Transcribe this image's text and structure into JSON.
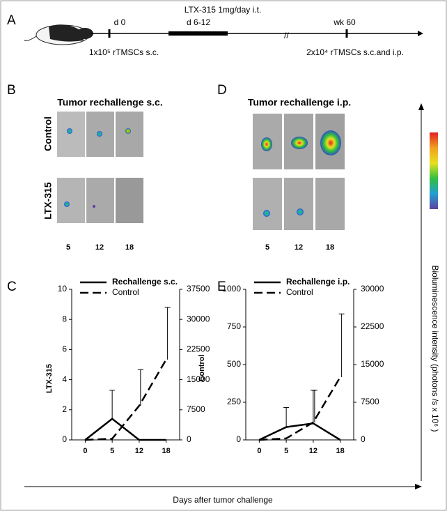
{
  "panel_labels": [
    "A",
    "B",
    "C",
    "D",
    "E"
  ],
  "timeline": {
    "treatment": "LTX-315 1mg/day i.t.",
    "day0": "d 0",
    "treatment_days": "d 6-12",
    "week": "wk 60",
    "inoculation": "1x10⁵ rTMSCs s.c.",
    "rechallenge": "2x10⁴ rTMSCs s.c.and i.p."
  },
  "imaging": [
    {
      "title": "Tumor rechallenge s.c.",
      "rows": [
        "Control",
        "LTX-315"
      ],
      "columns": [
        "5",
        "12",
        "18"
      ]
    },
    {
      "title": "Tumor rechallenge i.p.",
      "columns": [
        "5",
        "12",
        "18"
      ]
    }
  ],
  "colorbar_label": "Bioluminescence intensity (photons /s x 10⁶ )",
  "x_axis_label": "Days after tumor challenge",
  "chart_data": [
    {
      "type": "line",
      "categories": [
        "0",
        "5",
        "12",
        "18"
      ],
      "ylabel": "LTX-315",
      "y2label": "Control",
      "ylim": [
        0,
        10
      ],
      "yticks": [
        0,
        2,
        4,
        6,
        8,
        10
      ],
      "y2lim": [
        0,
        37500
      ],
      "y2ticks": [
        0,
        7500,
        15000,
        22500,
        30000,
        37500
      ],
      "series": [
        {
          "name": "Rechallenge s.c.",
          "color": "#000000",
          "line_style": "solid",
          "values": [
            0,
            1.4,
            0,
            0
          ],
          "errors": [
            null,
            1.9,
            null,
            null
          ]
        },
        {
          "name": "Control",
          "color": "#000000",
          "line_style": "dashed",
          "axis": "y2",
          "values": [
            0,
            300,
            8500,
            20000
          ],
          "errors": [
            null,
            null,
            9000,
            13000
          ]
        }
      ]
    },
    {
      "type": "line",
      "categories": [
        "0",
        "5",
        "12",
        "18"
      ],
      "ylim": [
        0,
        1000
      ],
      "yticks": [
        0,
        250,
        500,
        750,
        1000
      ],
      "y2lim": [
        0,
        30000
      ],
      "y2ticks": [
        0,
        7500,
        15000,
        22500,
        30000
      ],
      "series": [
        {
          "name": "Rechallenge i.p.",
          "color": "#000000",
          "line_style": "solid",
          "values": [
            0,
            85,
            110,
            0
          ],
          "errors": [
            null,
            130,
            220,
            null
          ]
        },
        {
          "name": "Control",
          "color": "#000000",
          "line_style": "dashed",
          "axis": "y2",
          "values": [
            0,
            300,
            3500,
            12500
          ],
          "errors": [
            null,
            null,
            6400,
            12600
          ]
        }
      ]
    }
  ]
}
